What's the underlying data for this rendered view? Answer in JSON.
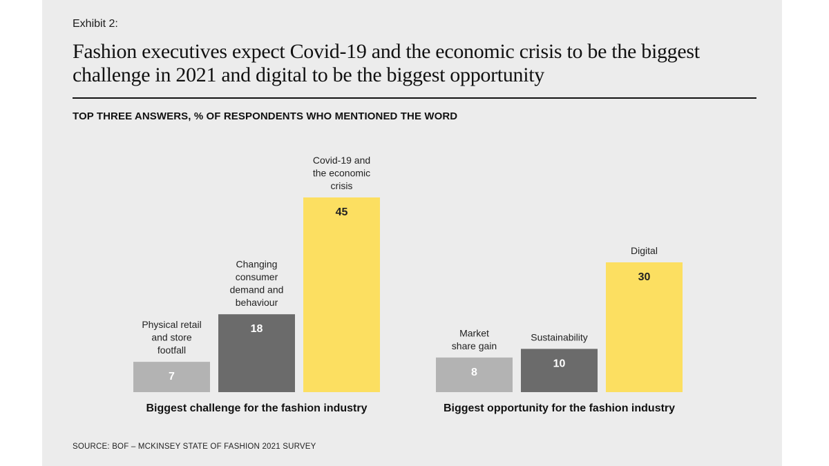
{
  "header": {
    "exhibit": "Exhibit 2:",
    "title": "Fashion executives expect Covid-19 and the economic crisis to be the biggest challenge in 2021 and digital to be the biggest opportunity",
    "subtitle": "TOP THREE ANSWERS, % OF RESPONDENTS WHO MENTIONED THE WORD"
  },
  "footer": {
    "source": "SOURCE: BOF – MCKINSEY STATE OF FASHION 2021 SURVEY"
  },
  "colors": {
    "light": "#b3b3b3",
    "dark": "#6b6b6b",
    "highlight": "#fcdf61",
    "background": "#ececec"
  },
  "chart_data": [
    {
      "type": "bar",
      "group_label": "Biggest challenge for the fashion industry",
      "categories": [
        [
          "Physical retail",
          "and store",
          "footfall"
        ],
        [
          "Changing",
          "consumer",
          "demand and",
          "behaviour"
        ],
        [
          "Covid-19 and",
          "the economic",
          "crisis"
        ]
      ],
      "values": [
        7,
        18,
        45
      ],
      "bar_colors": [
        "light",
        "dark",
        "highlight"
      ],
      "ylim": [
        0,
        45
      ]
    },
    {
      "type": "bar",
      "group_label": "Biggest opportunity for the fashion industry",
      "categories": [
        [
          "Market",
          "share gain"
        ],
        [
          "Sustainability"
        ],
        [
          "Digital"
        ]
      ],
      "values": [
        8,
        10,
        30
      ],
      "bar_colors": [
        "light",
        "dark",
        "highlight"
      ],
      "ylim": [
        0,
        45
      ]
    }
  ]
}
